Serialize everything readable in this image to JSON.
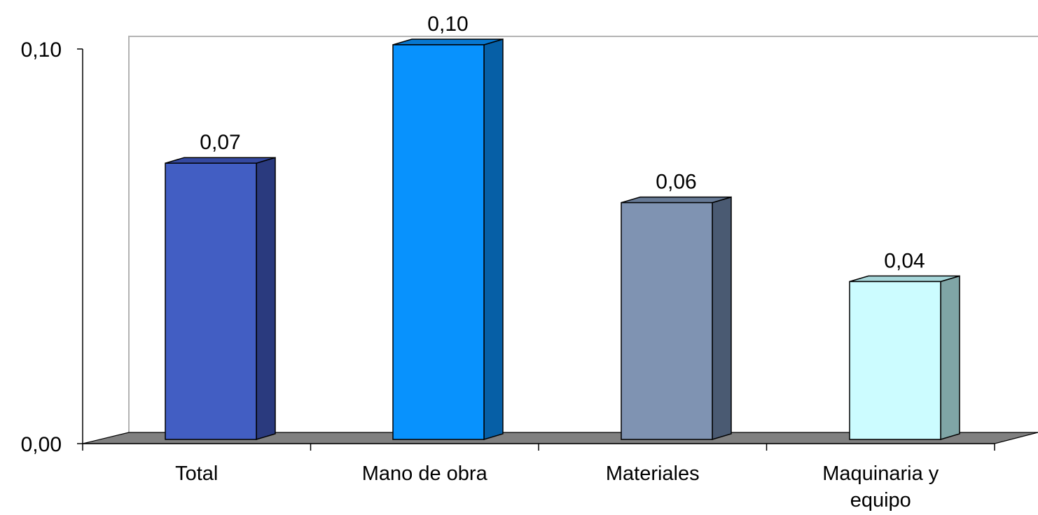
{
  "chart_data": {
    "type": "bar",
    "categories": [
      [
        "Total"
      ],
      [
        "Mano de obra"
      ],
      [
        "Materiales"
      ],
      [
        "Maquinaria y",
        "equipo"
      ]
    ],
    "values": [
      0.07,
      0.1,
      0.06,
      0.04
    ],
    "data_labels": [
      "0,07",
      "0,10",
      "0,06",
      "0,04"
    ],
    "ylim": [
      0,
      0.1
    ],
    "y_ticks": [
      {
        "value": 0.0,
        "label": "0,00"
      },
      {
        "value": 0.1,
        "label": "0,10"
      }
    ],
    "bar_colors": [
      {
        "front": "#425EC3",
        "side": "#2A3A7E",
        "top": "#3549A0"
      },
      {
        "front": "#0892FD",
        "side": "#065FA6",
        "top": "#0777D0"
      },
      {
        "front": "#7F93B2",
        "side": "#4A5A72",
        "top": "#677A96"
      },
      {
        "front": "#CCFCFF",
        "side": "#7FA5A6",
        "top": "#A6D6D9"
      }
    ],
    "floor_color": "#808080",
    "wall_color": "#B3B3B3",
    "style": "3d-column",
    "grid": false,
    "legend": "none",
    "title": "",
    "xlabel": "",
    "ylabel": ""
  }
}
